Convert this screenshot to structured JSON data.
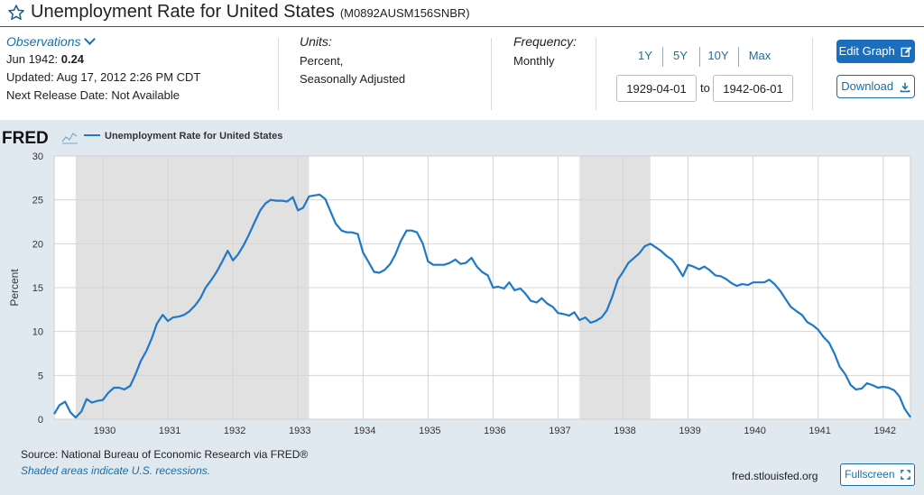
{
  "header": {
    "title": "Unemployment Rate for United States",
    "series_code": "(M0892AUSM156SNBR)"
  },
  "observations": {
    "heading": "Observations",
    "latest_label": "Jun 1942:",
    "latest_value": "0.24",
    "updated": "Updated: Aug 17, 2012 2:26 PM CDT",
    "next_release": "Next Release Date: Not Available"
  },
  "units": {
    "heading": "Units:",
    "line1": "Percent,",
    "line2": "Seasonally Adjusted"
  },
  "frequency": {
    "heading": "Frequency:",
    "value": "Monthly"
  },
  "ranges": [
    "1Y",
    "5Y",
    "10Y",
    "Max"
  ],
  "date_range": {
    "start": "1929-04-01",
    "to_label": "to",
    "end": "1942-06-01"
  },
  "buttons": {
    "edit_graph": "Edit Graph",
    "download": "Download",
    "fullscreen": "Fullscreen"
  },
  "footer": {
    "source": "Source: National Bureau of Economic Research via FRED®",
    "note": "Shaded areas indicate U.S. recessions.",
    "site": "fred.stlouisfed.org"
  },
  "colors": {
    "line": "#1f78c8",
    "recession": "#e1e1e1",
    "accent": "#1a6ec0"
  },
  "chart_data": {
    "type": "line",
    "brand": "FRED",
    "legend": "Unemployment Rate for United States",
    "ylabel": "Percent",
    "xlabel": "",
    "xlim": [
      1929.25,
      1942.42
    ],
    "ylim": [
      0,
      30
    ],
    "yticks": [
      0,
      5,
      10,
      15,
      20,
      25,
      30
    ],
    "xticks": [
      "1930",
      "1931",
      "1932",
      "1933",
      "1934",
      "1935",
      "1936",
      "1937",
      "1938",
      "1939",
      "1940",
      "1941",
      "1942"
    ],
    "recessions": [
      [
        1929.58,
        1933.17
      ],
      [
        1937.33,
        1938.42
      ]
    ],
    "series": [
      {
        "name": "Unemployment Rate for United States",
        "x": [
          1929.25,
          1929.33,
          1929.42,
          1929.5,
          1929.58,
          1929.67,
          1929.75,
          1929.83,
          1929.92,
          1930.0,
          1930.08,
          1930.17,
          1930.25,
          1930.33,
          1930.42,
          1930.5,
          1930.58,
          1930.67,
          1930.75,
          1930.83,
          1930.92,
          1931.0,
          1931.08,
          1931.17,
          1931.25,
          1931.33,
          1931.42,
          1931.5,
          1931.58,
          1931.67,
          1931.75,
          1931.83,
          1931.92,
          1932.0,
          1932.08,
          1932.17,
          1932.25,
          1932.33,
          1932.42,
          1932.5,
          1932.58,
          1932.67,
          1932.75,
          1932.83,
          1932.92,
          1933.0,
          1933.08,
          1933.17,
          1933.25,
          1933.33,
          1933.42,
          1933.5,
          1933.58,
          1933.67,
          1933.75,
          1933.83,
          1933.92,
          1934.0,
          1934.08,
          1934.17,
          1934.25,
          1934.33,
          1934.42,
          1934.5,
          1934.58,
          1934.67,
          1934.75,
          1934.83,
          1934.92,
          1935.0,
          1935.08,
          1935.17,
          1935.25,
          1935.33,
          1935.42,
          1935.5,
          1935.58,
          1935.67,
          1935.75,
          1935.83,
          1935.92,
          1936.0,
          1936.08,
          1936.17,
          1936.25,
          1936.33,
          1936.42,
          1936.5,
          1936.58,
          1936.67,
          1936.75,
          1936.83,
          1936.92,
          1937.0,
          1937.08,
          1937.17,
          1937.25,
          1937.33,
          1937.42,
          1937.5,
          1937.58,
          1937.67,
          1937.75,
          1937.83,
          1937.92,
          1938.0,
          1938.08,
          1938.17,
          1938.25,
          1938.33,
          1938.42,
          1938.5,
          1938.58,
          1938.67,
          1938.75,
          1938.83,
          1938.92,
          1939.0,
          1939.08,
          1939.17,
          1939.25,
          1939.33,
          1939.42,
          1939.5,
          1939.58,
          1939.67,
          1939.75,
          1939.83,
          1939.92,
          1940.0,
          1940.08,
          1940.17,
          1940.25,
          1940.33,
          1940.42,
          1940.5,
          1940.58,
          1940.67,
          1940.75,
          1940.83,
          1940.92,
          1941.0,
          1941.08,
          1941.17,
          1941.25,
          1941.33,
          1941.42,
          1941.5,
          1941.58,
          1941.67,
          1941.75,
          1941.83,
          1941.92,
          1942.0,
          1942.08,
          1942.17,
          1942.25,
          1942.33,
          1942.42
        ],
        "values": [
          0.6,
          1.6,
          2.0,
          0.8,
          0.2,
          0.9,
          2.3,
          1.9,
          2.1,
          2.2,
          3.0,
          3.6,
          3.6,
          3.4,
          3.8,
          5.1,
          6.6,
          7.8,
          9.2,
          10.9,
          11.9,
          11.2,
          11.6,
          11.7,
          11.9,
          12.3,
          13.0,
          13.8,
          15.0,
          15.9,
          16.8,
          17.9,
          19.2,
          18.1,
          18.8,
          19.9,
          21.1,
          22.4,
          23.8,
          24.6,
          25.0,
          24.9,
          24.9,
          24.8,
          25.3,
          23.8,
          24.1,
          25.4,
          25.5,
          25.6,
          25.1,
          23.7,
          22.3,
          21.5,
          21.3,
          21.3,
          21.1,
          19.0,
          18.0,
          16.8,
          16.7,
          17.0,
          17.7,
          18.8,
          20.3,
          21.5,
          21.5,
          21.3,
          20.0,
          18.0,
          17.6,
          17.6,
          17.6,
          17.8,
          18.2,
          17.7,
          17.8,
          18.4,
          17.4,
          16.8,
          16.4,
          15.0,
          15.1,
          14.9,
          15.6,
          14.7,
          14.9,
          14.3,
          13.5,
          13.3,
          13.8,
          13.2,
          12.8,
          12.1,
          12.0,
          11.8,
          12.2,
          11.3,
          11.6,
          11.0,
          11.2,
          11.6,
          12.4,
          13.9,
          15.9,
          16.8,
          17.8,
          18.4,
          18.9,
          19.7,
          20.0,
          19.6,
          19.2,
          18.6,
          18.2,
          17.4,
          16.3,
          17.6,
          17.4,
          17.1,
          17.4,
          17.0,
          16.4,
          16.3,
          16.0,
          15.5,
          15.2,
          15.4,
          15.3,
          15.6,
          15.6,
          15.6,
          15.9,
          15.4,
          14.6,
          13.7,
          12.8,
          12.3,
          11.9,
          11.1,
          10.7,
          10.2,
          9.4,
          8.7,
          7.5,
          6.0,
          5.1,
          3.9,
          3.4,
          3.5,
          4.1,
          3.9,
          3.6,
          3.7,
          3.6,
          3.3,
          2.6,
          1.2,
          0.24
        ]
      }
    ]
  }
}
